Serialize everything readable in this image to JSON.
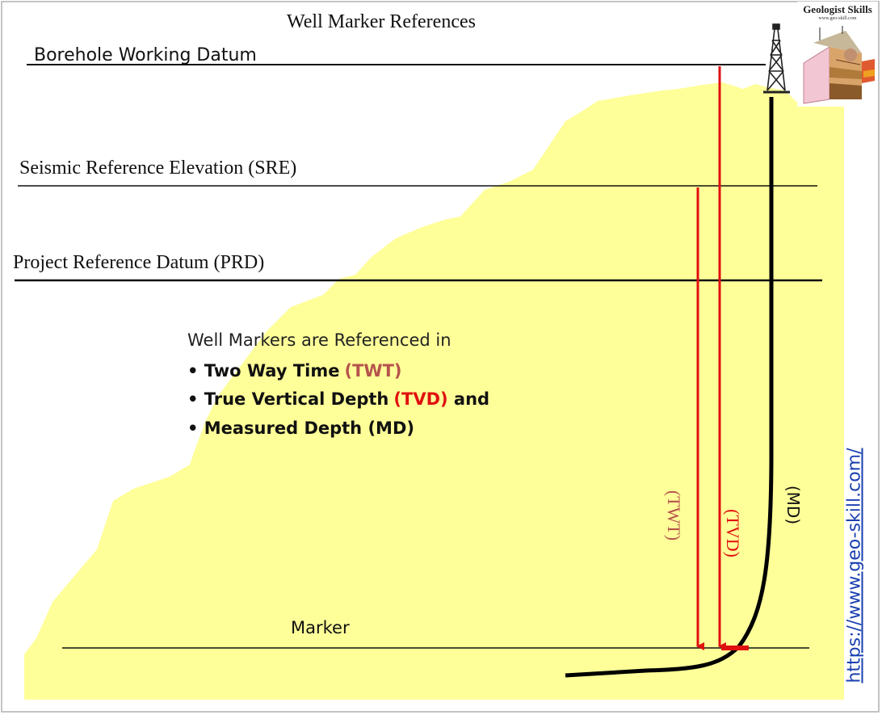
{
  "title": "Well Marker References",
  "datums": {
    "bwd": "Borehole Working Datum",
    "sre": "Seismic Reference Elevation (SRE)",
    "prd": "Project Reference Datum (PRD)"
  },
  "info": {
    "heading": "Well Markers are Referenced in",
    "items": [
      {
        "text": "Two Way Time",
        "abbr": "(TWT)",
        "abbr_color": "#b5534c"
      },
      {
        "text": "True Vertical Depth",
        "abbr": "(TVD)",
        "abbr_color": "#e01010",
        "suffix": " and"
      },
      {
        "text": "Measured Depth (MD)"
      }
    ]
  },
  "measures": {
    "twt": "(TWT)",
    "tvd": "(TVD)",
    "md": "(MD)"
  },
  "marker_label": "Marker",
  "logo": {
    "title": "Geologist Skills",
    "url": "www.geo-skill.com"
  },
  "link": "https://www.geo-skill.com/",
  "colors": {
    "terrain": "#ffff99",
    "arrows": "#e01010",
    "twt_label": "#b5534c",
    "tvd_label": "#e01010",
    "link": "#1a3fb0"
  }
}
